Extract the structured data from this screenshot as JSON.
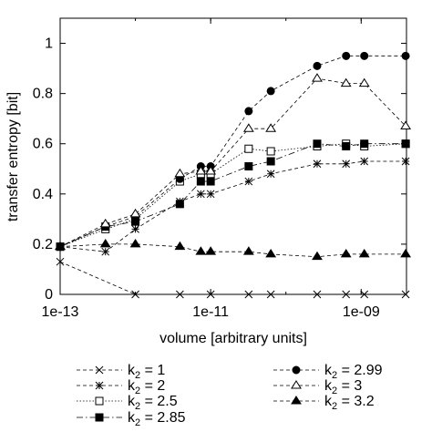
{
  "chart_data": {
    "type": "line",
    "xlabel": "volume [arbitrary units]",
    "ylabel": "transfer entropy [bit]",
    "x_scale": "log",
    "xlim": [
      1e-13,
      4e-09
    ],
    "ylim": [
      0,
      1.1
    ],
    "x_ticks": [
      {
        "value": 1e-13,
        "label": "1e-13"
      },
      {
        "value": 1e-11,
        "label": "1e-11"
      },
      {
        "value": 1e-09,
        "label": "1e-09"
      }
    ],
    "y_ticks": [
      {
        "value": 0,
        "label": "0"
      },
      {
        "value": 0.2,
        "label": "0.2"
      },
      {
        "value": 0.4,
        "label": "0.4"
      },
      {
        "value": 0.6,
        "label": "0.6"
      },
      {
        "value": 0.8,
        "label": "0.8"
      },
      {
        "value": 1,
        "label": "1"
      }
    ],
    "grid": false,
    "legend_position": "bottom",
    "x": [
      1e-13,
      4e-13,
      1e-12,
      3.9e-12,
      7.4e-12,
      1e-11,
      3.2e-11,
      6.3e-11,
      2.6e-10,
      6.3e-10,
      1.1e-09,
      3.9e-09
    ],
    "series": [
      {
        "name": "1",
        "marker": "x",
        "dash": "4,3",
        "values": [
          0.13,
          null,
          0.0,
          0.0,
          null,
          0.0,
          0.0,
          0.0,
          0.0,
          0.0,
          0.0,
          0.0
        ]
      },
      {
        "name": "2",
        "marker": "asterisk",
        "dash": "4,3",
        "values": [
          0.19,
          0.17,
          0.26,
          0.37,
          0.4,
          0.4,
          0.45,
          0.48,
          0.52,
          0.52,
          0.53,
          0.53
        ]
      },
      {
        "name": "2.5",
        "marker": "square-open",
        "dash": "1.5,2",
        "values": [
          0.19,
          0.26,
          0.3,
          0.45,
          0.48,
          0.48,
          0.58,
          0.57,
          0.59,
          0.6,
          0.59,
          0.6
        ]
      },
      {
        "name": "2.85",
        "marker": "square-filled",
        "dash": "7,3,1.5,3",
        "values": [
          0.19,
          0.27,
          0.29,
          0.36,
          0.45,
          0.45,
          0.51,
          0.53,
          0.6,
          0.59,
          0.6,
          0.6
        ]
      },
      {
        "name": "2.99",
        "marker": "circle-filled",
        "dash": "4,3",
        "values": [
          0.19,
          0.27,
          0.31,
          0.46,
          0.51,
          0.51,
          0.73,
          0.81,
          0.91,
          0.95,
          0.95,
          0.95
        ]
      },
      {
        "name": "3",
        "marker": "triangle-open",
        "dash": "4,3",
        "values": [
          0.19,
          0.28,
          0.32,
          0.48,
          0.49,
          0.49,
          0.66,
          0.66,
          0.86,
          0.84,
          0.84,
          0.67
        ]
      },
      {
        "name": "3.2",
        "marker": "triangle-filled",
        "dash": "4,3",
        "values": [
          0.19,
          0.2,
          0.2,
          0.19,
          0.17,
          0.17,
          0.17,
          0.16,
          0.15,
          0.16,
          0.16,
          0.16
        ]
      }
    ],
    "legend": {
      "label_prefix": "k",
      "label_sub": "2",
      "label_eq": " = "
    }
  }
}
